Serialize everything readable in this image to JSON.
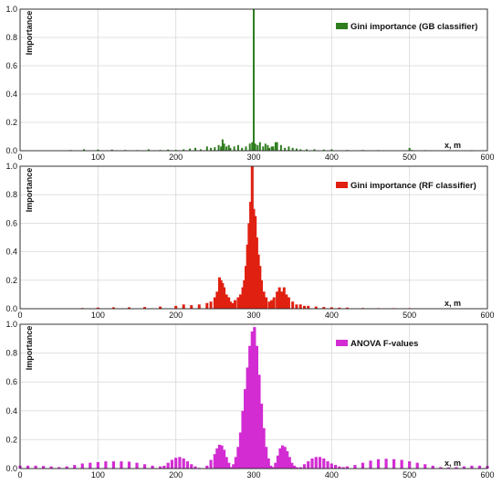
{
  "chart_data": [
    {
      "type": "bar",
      "xlabel": "x, m",
      "ylabel": "Importance",
      "xlim": [
        0,
        600
      ],
      "ylim": [
        0,
        1.0
      ],
      "x_ticks": [
        "0",
        "100",
        "200",
        "300",
        "400",
        "500",
        "600"
      ],
      "y_ticks": [
        "0.0",
        "0.2",
        "0.4",
        "0.6",
        "0.8",
        "1.0"
      ],
      "grid": true,
      "legend_position": "top-right",
      "series": [
        {
          "name": "Gini importance (GB classifier)",
          "color": "#2e7d1e",
          "x": [
            65,
            82,
            100,
            118,
            135,
            150,
            165,
            180,
            190,
            200,
            210,
            218,
            225,
            232,
            240,
            245,
            250,
            255,
            258,
            260,
            262,
            265,
            268,
            270,
            275,
            280,
            285,
            290,
            295,
            298,
            300,
            302,
            305,
            308,
            312,
            315,
            318,
            320,
            323,
            325,
            328,
            330,
            335,
            340,
            345,
            350,
            355,
            360,
            368,
            378,
            390,
            400,
            420,
            440,
            460,
            500,
            503,
            520,
            550,
            580
          ],
          "values": [
            0.005,
            0.01,
            0.008,
            0.008,
            0.005,
            0.004,
            0.01,
            0.005,
            0.008,
            0.006,
            0.01,
            0.015,
            0.02,
            0.01,
            0.03,
            0.02,
            0.025,
            0.04,
            0.03,
            0.08,
            0.05,
            0.03,
            0.04,
            0.02,
            0.03,
            0.04,
            0.02,
            0.03,
            0.05,
            0.06,
            1.0,
            0.05,
            0.04,
            0.06,
            0.03,
            0.05,
            0.04,
            0.02,
            0.03,
            0.03,
            0.06,
            0.06,
            0.04,
            0.02,
            0.03,
            0.02,
            0.015,
            0.01,
            0.01,
            0.01,
            0.008,
            0.01,
            0.005,
            0.005,
            0.004,
            0.02,
            0.005,
            0.003,
            0.003,
            0.002
          ]
        }
      ]
    },
    {
      "type": "bar",
      "xlabel": "x, m",
      "ylabel": "Importance",
      "xlim": [
        0,
        600
      ],
      "ylim": [
        0,
        1.0
      ],
      "x_ticks": [
        "0",
        "100",
        "200",
        "300",
        "400",
        "500",
        "600"
      ],
      "y_ticks": [
        "0.0",
        "0.2",
        "0.4",
        "0.6",
        "0.8",
        "1.0"
      ],
      "grid": true,
      "legend_position": "top-right",
      "series": [
        {
          "name": "Gini importance (RF classifier)",
          "color": "#e02010",
          "x": [
            80,
            100,
            120,
            140,
            160,
            180,
            200,
            210,
            220,
            230,
            240,
            245,
            250,
            253,
            256,
            258,
            260,
            262,
            265,
            268,
            270,
            273,
            276,
            280,
            283,
            286,
            288,
            290,
            292,
            294,
            296,
            298,
            300,
            302,
            304,
            306,
            308,
            310,
            313,
            316,
            320,
            323,
            326,
            330,
            333,
            336,
            339,
            342,
            345,
            350,
            355,
            360,
            365,
            370,
            380,
            390,
            400,
            410,
            420,
            440,
            460,
            480,
            500
          ],
          "values": [
            0.005,
            0.008,
            0.01,
            0.01,
            0.012,
            0.015,
            0.02,
            0.03,
            0.025,
            0.03,
            0.04,
            0.05,
            0.08,
            0.12,
            0.22,
            0.2,
            0.18,
            0.15,
            0.1,
            0.08,
            0.05,
            0.04,
            0.06,
            0.08,
            0.1,
            0.15,
            0.2,
            0.3,
            0.45,
            0.6,
            0.75,
            1.0,
            0.7,
            0.65,
            0.5,
            0.38,
            0.3,
            0.2,
            0.12,
            0.08,
            0.05,
            0.06,
            0.08,
            0.12,
            0.15,
            0.12,
            0.15,
            0.1,
            0.08,
            0.05,
            0.03,
            0.03,
            0.02,
            0.02,
            0.015,
            0.012,
            0.01,
            0.008,
            0.008,
            0.005,
            0.004,
            0.003,
            0.003
          ]
        }
      ]
    },
    {
      "type": "bar",
      "xlabel": "x, m",
      "ylabel": "Importance",
      "xlim": [
        0,
        600
      ],
      "ylim": [
        0,
        1.0
      ],
      "x_ticks": [
        "0",
        "100",
        "200",
        "300",
        "400",
        "500",
        "600"
      ],
      "y_ticks": [
        "0.0",
        "0.2",
        "0.4",
        "0.6",
        "0.8",
        "1.0"
      ],
      "grid": true,
      "legend_position": "top-right",
      "series": [
        {
          "name": "ANOVA F-values",
          "color": "#d22cd2",
          "x": [
            0,
            10,
            20,
            30,
            40,
            50,
            60,
            70,
            80,
            90,
            100,
            110,
            120,
            130,
            140,
            150,
            160,
            170,
            180,
            185,
            190,
            195,
            200,
            205,
            210,
            215,
            220,
            225,
            230,
            240,
            245,
            250,
            253,
            256,
            259,
            262,
            265,
            268,
            271,
            274,
            277,
            280,
            283,
            286,
            289,
            292,
            295,
            298,
            301,
            304,
            307,
            310,
            313,
            316,
            319,
            322,
            325,
            328,
            331,
            334,
            337,
            340,
            343,
            346,
            349,
            352,
            355,
            360,
            365,
            370,
            375,
            380,
            385,
            390,
            395,
            400,
            405,
            410,
            415,
            420,
            430,
            440,
            450,
            460,
            470,
            480,
            490,
            500,
            510,
            520,
            530,
            540,
            550,
            560,
            570,
            580,
            590,
            600
          ],
          "values": [
            0.02,
            0.02,
            0.02,
            0.018,
            0.015,
            0.01,
            0.015,
            0.025,
            0.035,
            0.04,
            0.045,
            0.05,
            0.05,
            0.05,
            0.048,
            0.04,
            0.03,
            0.02,
            0.015,
            0.02,
            0.04,
            0.06,
            0.075,
            0.08,
            0.07,
            0.05,
            0.03,
            0.015,
            0.005,
            0.02,
            0.06,
            0.1,
            0.14,
            0.165,
            0.16,
            0.13,
            0.08,
            0.04,
            0.01,
            0.03,
            0.08,
            0.15,
            0.25,
            0.4,
            0.55,
            0.7,
            0.85,
            0.95,
            0.98,
            0.85,
            0.65,
            0.45,
            0.28,
            0.15,
            0.07,
            0.02,
            0.01,
            0.04,
            0.09,
            0.14,
            0.16,
            0.15,
            0.12,
            0.08,
            0.04,
            0.02,
            0.01,
            0.01,
            0.03,
            0.05,
            0.07,
            0.08,
            0.08,
            0.07,
            0.05,
            0.035,
            0.025,
            0.015,
            0.01,
            0.015,
            0.025,
            0.04,
            0.055,
            0.065,
            0.068,
            0.065,
            0.06,
            0.05,
            0.04,
            0.03,
            0.02,
            0.01,
            0.008,
            0.01,
            0.015,
            0.02,
            0.02,
            0.018
          ]
        }
      ]
    }
  ]
}
